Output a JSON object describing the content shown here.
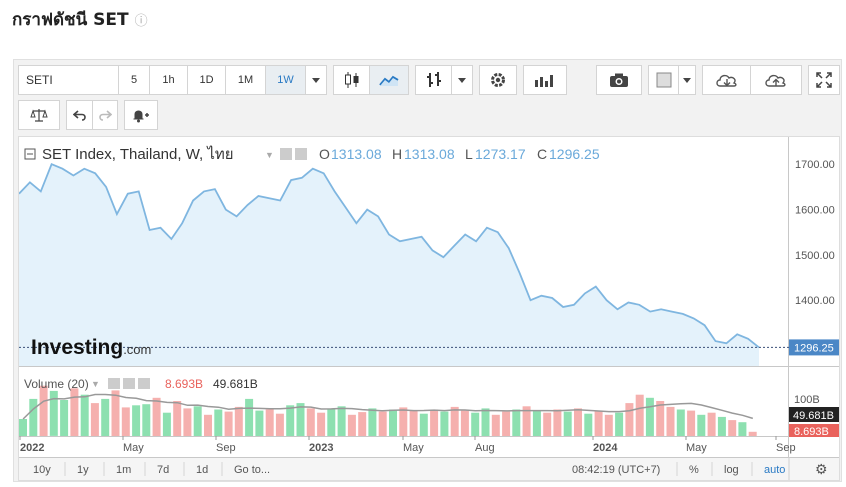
{
  "page": {
    "title": "กราฟดัชนี SET"
  },
  "toolbar": {
    "symbol": "SETI",
    "intervals": [
      "5",
      "1h",
      "1D",
      "1M",
      "1W"
    ],
    "active_interval": "1W"
  },
  "legend": {
    "name": "SET Index, Thailand, W, ไทย",
    "o_label": "O",
    "o_value": "1313.08",
    "h_label": "H",
    "h_value": "1313.08",
    "l_label": "L",
    "l_value": "1273.17",
    "c_label": "C",
    "c_value": "1296.25"
  },
  "volume_legend": {
    "label": "Volume (20)",
    "v1": "8.693B",
    "v2": "49.681B"
  },
  "brand": {
    "name": "Investing",
    "suffix": ".com"
  },
  "bottom": {
    "ranges": [
      "10y",
      "1y",
      "1m",
      "7d",
      "1d",
      "Go to..."
    ],
    "time": "08:42:19 (UTC+7)",
    "options": [
      "%",
      "log",
      "auto"
    ]
  },
  "colors": {
    "line": "#7fb6e0",
    "area": "#e4f2fb",
    "up": "#8de0b0",
    "down": "#f5b0ae",
    "accent": "#2a7ac4",
    "last_tag": "#4b87c6",
    "vol_tag": "#e9625c"
  },
  "chart_data": {
    "type": "area",
    "x_ticks": [
      "2022",
      "May",
      "Sep",
      "2023",
      "May",
      "Aug",
      "2024",
      "May",
      "Sep"
    ],
    "y_ticks": [
      1400,
      1500,
      1600,
      1700
    ],
    "ylim": [
      1255,
      1760
    ],
    "last_value_label": "1296.25",
    "points": [
      [
        "2021-12-31",
        1635
      ],
      [
        "2022-01-14",
        1660
      ],
      [
        "2022-01-28",
        1640
      ],
      [
        "2022-02-11",
        1700
      ],
      [
        "2022-02-25",
        1690
      ],
      [
        "2022-03-11",
        1675
      ],
      [
        "2022-03-25",
        1690
      ],
      [
        "2022-04-08",
        1680
      ],
      [
        "2022-04-22",
        1650
      ],
      [
        "2022-05-06",
        1590
      ],
      [
        "2022-05-20",
        1635
      ],
      [
        "2022-06-03",
        1640
      ],
      [
        "2022-06-17",
        1555
      ],
      [
        "2022-07-01",
        1560
      ],
      [
        "2022-07-15",
        1535
      ],
      [
        "2022-07-29",
        1570
      ],
      [
        "2022-08-12",
        1620
      ],
      [
        "2022-08-26",
        1640
      ],
      [
        "2022-09-09",
        1645
      ],
      [
        "2022-09-23",
        1600
      ],
      [
        "2022-10-07",
        1585
      ],
      [
        "2022-10-21",
        1610
      ],
      [
        "2022-11-04",
        1630
      ],
      [
        "2022-11-18",
        1625
      ],
      [
        "2022-12-02",
        1620
      ],
      [
        "2022-12-16",
        1665
      ],
      [
        "2022-12-30",
        1670
      ],
      [
        "2023-01-13",
        1690
      ],
      [
        "2023-01-27",
        1680
      ],
      [
        "2023-02-10",
        1640
      ],
      [
        "2023-02-24",
        1605
      ],
      [
        "2023-03-10",
        1570
      ],
      [
        "2023-03-24",
        1600
      ],
      [
        "2023-04-07",
        1585
      ],
      [
        "2023-04-21",
        1545
      ],
      [
        "2023-05-05",
        1530
      ],
      [
        "2023-05-19",
        1535
      ],
      [
        "2023-06-02",
        1540
      ],
      [
        "2023-06-16",
        1510
      ],
      [
        "2023-06-30",
        1495
      ],
      [
        "2023-07-14",
        1520
      ],
      [
        "2023-07-28",
        1545
      ],
      [
        "2023-08-11",
        1530
      ],
      [
        "2023-08-25",
        1560
      ],
      [
        "2023-09-08",
        1550
      ],
      [
        "2023-09-22",
        1515
      ],
      [
        "2023-10-06",
        1460
      ],
      [
        "2023-10-20",
        1400
      ],
      [
        "2023-11-03",
        1410
      ],
      [
        "2023-11-17",
        1405
      ],
      [
        "2023-12-01",
        1385
      ],
      [
        "2023-12-15",
        1390
      ],
      [
        "2023-12-29",
        1415
      ],
      [
        "2024-01-12",
        1430
      ],
      [
        "2024-01-26",
        1400
      ],
      [
        "2024-02-09",
        1380
      ],
      [
        "2024-02-23",
        1395
      ],
      [
        "2024-03-08",
        1390
      ],
      [
        "2024-03-22",
        1375
      ],
      [
        "2024-04-05",
        1380
      ],
      [
        "2024-04-19",
        1375
      ],
      [
        "2024-05-03",
        1370
      ],
      [
        "2024-05-17",
        1360
      ],
      [
        "2024-05-31",
        1345
      ],
      [
        "2024-06-14",
        1310
      ],
      [
        "2024-06-28",
        1305
      ],
      [
        "2024-07-12",
        1325
      ],
      [
        "2024-07-26",
        1315
      ],
      [
        "2024-08-09",
        1296
      ]
    ],
    "volume": [
      [
        0.32,
        1
      ],
      [
        0.7,
        1
      ],
      [
        0.95,
        0
      ],
      [
        0.85,
        1
      ],
      [
        0.68,
        1
      ],
      [
        0.9,
        0
      ],
      [
        0.78,
        1
      ],
      [
        0.62,
        0
      ],
      [
        0.7,
        1
      ],
      [
        0.86,
        0
      ],
      [
        0.54,
        0
      ],
      [
        0.58,
        1
      ],
      [
        0.6,
        1
      ],
      [
        0.72,
        0
      ],
      [
        0.44,
        1
      ],
      [
        0.66,
        0
      ],
      [
        0.52,
        0
      ],
      [
        0.56,
        1
      ],
      [
        0.4,
        0
      ],
      [
        0.5,
        1
      ],
      [
        0.46,
        0
      ],
      [
        0.55,
        0
      ],
      [
        0.7,
        1
      ],
      [
        0.48,
        1
      ],
      [
        0.5,
        0
      ],
      [
        0.42,
        0
      ],
      [
        0.58,
        1
      ],
      [
        0.62,
        1
      ],
      [
        0.52,
        0
      ],
      [
        0.44,
        0
      ],
      [
        0.5,
        1
      ],
      [
        0.56,
        1
      ],
      [
        0.4,
        0
      ],
      [
        0.45,
        0
      ],
      [
        0.52,
        1
      ],
      [
        0.46,
        0
      ],
      [
        0.5,
        1
      ],
      [
        0.54,
        0
      ],
      [
        0.48,
        0
      ],
      [
        0.42,
        1
      ],
      [
        0.5,
        0
      ],
      [
        0.46,
        1
      ],
      [
        0.55,
        0
      ],
      [
        0.48,
        0
      ],
      [
        0.44,
        1
      ],
      [
        0.52,
        1
      ],
      [
        0.4,
        0
      ],
      [
        0.46,
        0
      ],
      [
        0.5,
        1
      ],
      [
        0.56,
        0
      ],
      [
        0.48,
        1
      ],
      [
        0.44,
        0
      ],
      [
        0.5,
        0
      ],
      [
        0.46,
        1
      ],
      [
        0.52,
        0
      ],
      [
        0.42,
        1
      ],
      [
        0.48,
        0
      ],
      [
        0.4,
        0
      ],
      [
        0.44,
        1
      ],
      [
        0.62,
        0
      ],
      [
        0.78,
        0
      ],
      [
        0.72,
        1
      ],
      [
        0.66,
        0
      ],
      [
        0.55,
        0
      ],
      [
        0.5,
        1
      ],
      [
        0.48,
        0
      ],
      [
        0.4,
        1
      ],
      [
        0.44,
        0
      ],
      [
        0.36,
        1
      ],
      [
        0.3,
        0
      ],
      [
        0.26,
        1
      ],
      [
        0.08,
        0
      ]
    ]
  }
}
